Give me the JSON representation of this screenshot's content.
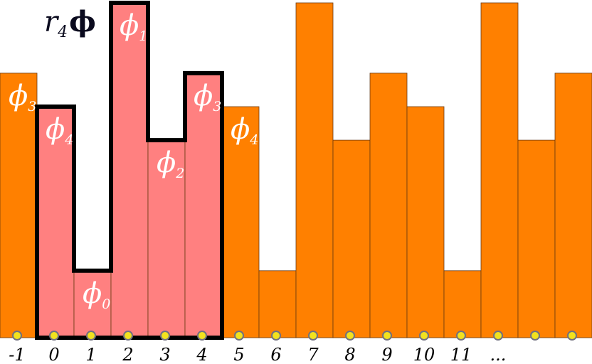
{
  "title": {
    "r": "r",
    "sub": "4",
    "phi": "ϕ"
  },
  "colors": {
    "bar_orange": "#ff8000",
    "bar_pink": "#ff8080",
    "bar_stroke": "#6a3a10",
    "highlight_outline": "#000000",
    "dot_fill": "#f2e21e",
    "dot_stroke": "#707080"
  },
  "chart_data": {
    "type": "bar",
    "note_levels": "relative bar heights as fraction of tallest bar",
    "bars": [
      {
        "index": "-1",
        "value": 0.79,
        "phi": "ϕ",
        "sub": "3",
        "highlight": false
      },
      {
        "index": "0",
        "value": 0.69,
        "phi": "ϕ",
        "sub": "4",
        "highlight": true
      },
      {
        "index": "1",
        "value": 0.2,
        "phi": "ϕ",
        "sub": "0",
        "highlight": true
      },
      {
        "index": "2",
        "value": 1.0,
        "phi": "ϕ",
        "sub": "1",
        "highlight": true
      },
      {
        "index": "3",
        "value": 0.59,
        "phi": "ϕ",
        "sub": "2",
        "highlight": true
      },
      {
        "index": "4",
        "value": 0.79,
        "phi": "ϕ",
        "sub": "3",
        "highlight": true
      },
      {
        "index": "5",
        "value": 0.69,
        "phi": "ϕ",
        "sub": "4",
        "highlight": false
      },
      {
        "index": "6",
        "value": 0.2,
        "phi": "",
        "sub": "",
        "highlight": false
      },
      {
        "index": "7",
        "value": 1.0,
        "phi": "",
        "sub": "",
        "highlight": false
      },
      {
        "index": "8",
        "value": 0.59,
        "phi": "",
        "sub": "",
        "highlight": false
      },
      {
        "index": "9",
        "value": 0.79,
        "phi": "",
        "sub": "",
        "highlight": false
      },
      {
        "index": "10",
        "value": 0.69,
        "phi": "",
        "sub": "",
        "highlight": false
      },
      {
        "index": "11",
        "value": 0.2,
        "phi": "",
        "sub": "",
        "highlight": false
      },
      {
        "index": "...",
        "value": 1.0,
        "phi": "",
        "sub": "",
        "highlight": false
      },
      {
        "index": "",
        "value": 0.59,
        "phi": "",
        "sub": "",
        "highlight": false
      },
      {
        "index": "",
        "value": 0.79,
        "phi": "",
        "sub": "",
        "highlight": false
      }
    ]
  }
}
